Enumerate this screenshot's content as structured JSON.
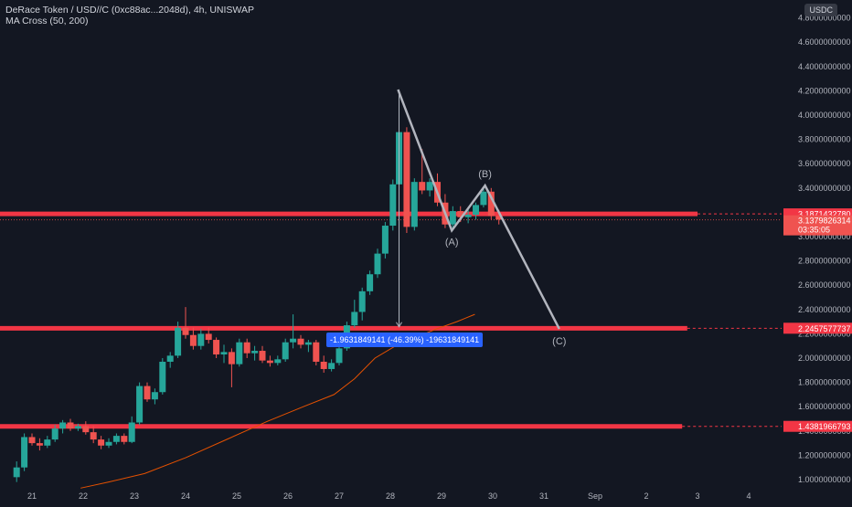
{
  "header": {
    "symbol_line": "DeRace Token / USD//C (0xc88ac...2048d), 4h, UNISWAP",
    "indicator_line": "MA Cross (50, 200)"
  },
  "currency_badge": "USDC",
  "colors": {
    "background": "#131722",
    "candle_up": "#26a69a",
    "candle_down": "#ef5350",
    "level_line": "#f23645",
    "ma_line": "#e65100",
    "pattern": "#b2b5be",
    "measure": "#2962ff"
  },
  "measure_label": "-1.9631849141 (-46.39%) -19631849141",
  "chart_data": {
    "type": "candlestick",
    "x_tick_labels": [
      "21",
      "22",
      "23",
      "24",
      "25",
      "26",
      "27",
      "28",
      "29",
      "30",
      "31",
      "Sep",
      "2",
      "3",
      "4"
    ],
    "y_tick_labels": [
      "1.0000000000",
      "1.2000000000",
      "1.4000000000",
      "1.6000000000",
      "1.8000000000",
      "2.0000000000",
      "2.2000000000",
      "2.4000000000",
      "2.6000000000",
      "2.8000000000",
      "3.0000000000",
      "3.2000000000",
      "3.4000000000",
      "3.6000000000",
      "3.8000000000",
      "4.0000000000",
      "4.2000000000",
      "4.4000000000",
      "4.6000000000",
      "4.8000000000"
    ],
    "ylim": [
      0.95,
      4.95
    ],
    "xlim": [
      20.6,
      35.5
    ],
    "horizontal_levels": [
      {
        "value": 3.187143278,
        "label": "3.1871432780",
        "end_day": 34.0
      },
      {
        "value": 2.2457577737,
        "label": "2.2457577737",
        "end_day": 33.8
      },
      {
        "value": 1.4381966793,
        "label": "1.4381966793",
        "end_day": 33.7
      }
    ],
    "last_price": {
      "value": 3.1379826314,
      "label": "3.1379826314",
      "countdown": "03:35:05"
    },
    "wave_labels": [
      "(A)",
      "(B)",
      "(C)"
    ],
    "wave_path": [
      {
        "x": 28.15,
        "y": 4.21
      },
      {
        "x": 29.2,
        "y": 3.05
      },
      {
        "x": 29.85,
        "y": 3.42
      },
      {
        "x": 31.3,
        "y": 2.24
      }
    ],
    "measure": {
      "x": 28.17,
      "from": 4.21,
      "to": 2.25
    },
    "moving_average": {
      "name": "MA 50",
      "points": [
        {
          "x": 21.95,
          "y": 0.93
        },
        {
          "x": 22.5,
          "y": 0.98
        },
        {
          "x": 23.2,
          "y": 1.05
        },
        {
          "x": 24.0,
          "y": 1.18
        },
        {
          "x": 24.8,
          "y": 1.33
        },
        {
          "x": 25.6,
          "y": 1.48
        },
        {
          "x": 26.3,
          "y": 1.6
        },
        {
          "x": 26.9,
          "y": 1.7
        },
        {
          "x": 27.3,
          "y": 1.83
        },
        {
          "x": 27.7,
          "y": 2.0
        },
        {
          "x": 28.1,
          "y": 2.1
        },
        {
          "x": 28.5,
          "y": 2.17
        },
        {
          "x": 28.9,
          "y": 2.24
        },
        {
          "x": 29.3,
          "y": 2.3
        },
        {
          "x": 29.65,
          "y": 2.36
        }
      ]
    },
    "candles": [
      {
        "x": 20.7,
        "o": 1.02,
        "h": 1.15,
        "l": 0.98,
        "c": 1.1
      },
      {
        "x": 20.85,
        "o": 1.1,
        "h": 1.38,
        "l": 1.07,
        "c": 1.35
      },
      {
        "x": 21.0,
        "o": 1.35,
        "h": 1.38,
        "l": 1.28,
        "c": 1.3
      },
      {
        "x": 21.15,
        "o": 1.3,
        "h": 1.34,
        "l": 1.24,
        "c": 1.28
      },
      {
        "x": 21.3,
        "o": 1.28,
        "h": 1.36,
        "l": 1.26,
        "c": 1.33
      },
      {
        "x": 21.45,
        "o": 1.33,
        "h": 1.45,
        "l": 1.31,
        "c": 1.42
      },
      {
        "x": 21.6,
        "o": 1.42,
        "h": 1.49,
        "l": 1.38,
        "c": 1.47
      },
      {
        "x": 21.75,
        "o": 1.47,
        "h": 1.5,
        "l": 1.4,
        "c": 1.42
      },
      {
        "x": 21.9,
        "o": 1.42,
        "h": 1.46,
        "l": 1.4,
        "c": 1.44
      },
      {
        "x": 22.05,
        "o": 1.44,
        "h": 1.48,
        "l": 1.37,
        "c": 1.39
      },
      {
        "x": 22.2,
        "o": 1.39,
        "h": 1.44,
        "l": 1.3,
        "c": 1.33
      },
      {
        "x": 22.35,
        "o": 1.33,
        "h": 1.36,
        "l": 1.25,
        "c": 1.28
      },
      {
        "x": 22.5,
        "o": 1.28,
        "h": 1.34,
        "l": 1.26,
        "c": 1.31
      },
      {
        "x": 22.65,
        "o": 1.31,
        "h": 1.38,
        "l": 1.29,
        "c": 1.36
      },
      {
        "x": 22.8,
        "o": 1.36,
        "h": 1.38,
        "l": 1.29,
        "c": 1.31
      },
      {
        "x": 22.95,
        "o": 1.31,
        "h": 1.52,
        "l": 1.3,
        "c": 1.47
      },
      {
        "x": 23.1,
        "o": 1.47,
        "h": 1.8,
        "l": 1.45,
        "c": 1.77
      },
      {
        "x": 23.25,
        "o": 1.77,
        "h": 1.8,
        "l": 1.64,
        "c": 1.66
      },
      {
        "x": 23.4,
        "o": 1.66,
        "h": 1.75,
        "l": 1.62,
        "c": 1.72
      },
      {
        "x": 23.55,
        "o": 1.72,
        "h": 2.0,
        "l": 1.7,
        "c": 1.97
      },
      {
        "x": 23.7,
        "o": 1.97,
        "h": 2.05,
        "l": 1.92,
        "c": 2.02
      },
      {
        "x": 23.85,
        "o": 2.02,
        "h": 2.3,
        "l": 2.0,
        "c": 2.25
      },
      {
        "x": 24.0,
        "o": 2.25,
        "h": 2.42,
        "l": 2.16,
        "c": 2.19
      },
      {
        "x": 24.15,
        "o": 2.19,
        "h": 2.25,
        "l": 2.07,
        "c": 2.1
      },
      {
        "x": 24.3,
        "o": 2.1,
        "h": 2.24,
        "l": 2.07,
        "c": 2.2
      },
      {
        "x": 24.45,
        "o": 2.2,
        "h": 2.25,
        "l": 2.12,
        "c": 2.15
      },
      {
        "x": 24.6,
        "o": 2.15,
        "h": 2.17,
        "l": 2.0,
        "c": 2.03
      },
      {
        "x": 24.75,
        "o": 2.03,
        "h": 2.11,
        "l": 1.96,
        "c": 2.05
      },
      {
        "x": 24.9,
        "o": 2.05,
        "h": 2.08,
        "l": 1.76,
        "c": 1.95
      },
      {
        "x": 25.05,
        "o": 1.95,
        "h": 2.16,
        "l": 1.93,
        "c": 2.13
      },
      {
        "x": 25.2,
        "o": 2.13,
        "h": 2.16,
        "l": 2.0,
        "c": 2.04
      },
      {
        "x": 25.35,
        "o": 2.04,
        "h": 2.1,
        "l": 1.98,
        "c": 2.06
      },
      {
        "x": 25.5,
        "o": 2.06,
        "h": 2.1,
        "l": 1.96,
        "c": 1.98
      },
      {
        "x": 25.65,
        "o": 1.98,
        "h": 2.02,
        "l": 1.93,
        "c": 1.96
      },
      {
        "x": 25.8,
        "o": 1.96,
        "h": 2.02,
        "l": 1.94,
        "c": 1.99
      },
      {
        "x": 25.95,
        "o": 1.99,
        "h": 2.16,
        "l": 1.97,
        "c": 2.13
      },
      {
        "x": 26.1,
        "o": 2.13,
        "h": 2.36,
        "l": 2.08,
        "c": 2.16
      },
      {
        "x": 26.25,
        "o": 2.16,
        "h": 2.19,
        "l": 2.08,
        "c": 2.11
      },
      {
        "x": 26.4,
        "o": 2.11,
        "h": 2.15,
        "l": 2.05,
        "c": 2.13
      },
      {
        "x": 26.55,
        "o": 2.13,
        "h": 2.15,
        "l": 1.94,
        "c": 1.97
      },
      {
        "x": 26.7,
        "o": 1.97,
        "h": 2.02,
        "l": 1.88,
        "c": 1.91
      },
      {
        "x": 26.85,
        "o": 1.91,
        "h": 1.99,
        "l": 1.89,
        "c": 1.96
      },
      {
        "x": 27.0,
        "o": 1.96,
        "h": 2.11,
        "l": 1.94,
        "c": 2.08
      },
      {
        "x": 27.15,
        "o": 2.08,
        "h": 2.3,
        "l": 2.06,
        "c": 2.27
      },
      {
        "x": 27.3,
        "o": 2.27,
        "h": 2.48,
        "l": 2.25,
        "c": 2.38
      },
      {
        "x": 27.45,
        "o": 2.38,
        "h": 2.58,
        "l": 2.31,
        "c": 2.55
      },
      {
        "x": 27.6,
        "o": 2.55,
        "h": 2.72,
        "l": 2.52,
        "c": 2.69
      },
      {
        "x": 27.75,
        "o": 2.69,
        "h": 2.9,
        "l": 2.66,
        "c": 2.86
      },
      {
        "x": 27.9,
        "o": 2.86,
        "h": 3.12,
        "l": 2.82,
        "c": 3.09
      },
      {
        "x": 28.05,
        "o": 3.09,
        "h": 3.47,
        "l": 3.05,
        "c": 3.43
      },
      {
        "x": 28.17,
        "o": 3.43,
        "h": 4.21,
        "l": 2.27,
        "c": 3.86
      },
      {
        "x": 28.32,
        "o": 3.86,
        "h": 3.9,
        "l": 3.03,
        "c": 3.08
      },
      {
        "x": 28.47,
        "o": 3.08,
        "h": 3.48,
        "l": 3.05,
        "c": 3.45
      },
      {
        "x": 28.62,
        "o": 3.45,
        "h": 3.72,
        "l": 3.35,
        "c": 3.38
      },
      {
        "x": 28.77,
        "o": 3.38,
        "h": 3.48,
        "l": 3.33,
        "c": 3.45
      },
      {
        "x": 28.92,
        "o": 3.45,
        "h": 3.52,
        "l": 3.25,
        "c": 3.28
      },
      {
        "x": 29.07,
        "o": 3.28,
        "h": 3.35,
        "l": 3.07,
        "c": 3.1
      },
      {
        "x": 29.22,
        "o": 3.1,
        "h": 3.25,
        "l": 3.05,
        "c": 3.21
      },
      {
        "x": 29.37,
        "o": 3.21,
        "h": 3.25,
        "l": 3.12,
        "c": 3.16
      },
      {
        "x": 29.52,
        "o": 3.16,
        "h": 3.23,
        "l": 3.11,
        "c": 3.18
      },
      {
        "x": 29.67,
        "o": 3.18,
        "h": 3.28,
        "l": 3.14,
        "c": 3.26
      },
      {
        "x": 29.82,
        "o": 3.26,
        "h": 3.4,
        "l": 3.24,
        "c": 3.37
      },
      {
        "x": 29.97,
        "o": 3.37,
        "h": 3.4,
        "l": 3.14,
        "c": 3.17
      },
      {
        "x": 30.12,
        "o": 3.17,
        "h": 3.22,
        "l": 3.1,
        "c": 3.14
      }
    ]
  }
}
